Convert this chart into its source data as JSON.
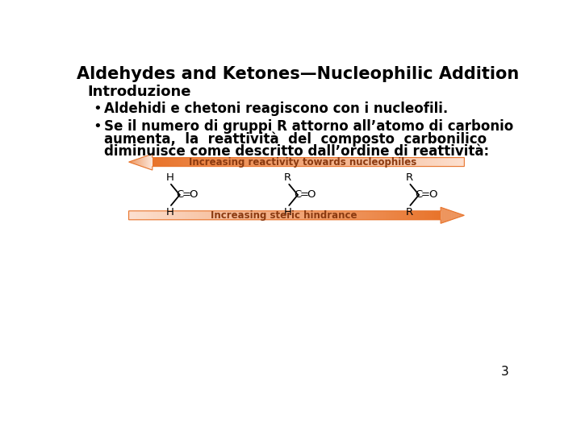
{
  "title": "Aldehydes and Ketones—Nucleophilic Addition",
  "subtitle": "Introduzione",
  "bullet1": "Aldehidi e chetoni reagiscono con i nucleofili.",
  "bullet2_line1": "Se il numero di gruppi R attorno all’atomo di carbonio",
  "bullet2_line2": "aumenta,  la  reattività  del  composto  carbonilico",
  "bullet2_line3": "diminuisce come descritto dall’ordine di reattività:",
  "arrow1_label": "Increasing reactivity towards nucleophiles",
  "arrow2_label": "Increasing steric hindrance",
  "bg_color": "#ffffff",
  "text_color": "#000000",
  "arrow_color_light": "#fce0d0",
  "arrow_color_dark": "#e8732a",
  "arrow_text_color": "#8b3a10",
  "page_number": "3",
  "title_fontsize": 15,
  "subtitle_fontsize": 13,
  "bullet_fontsize": 12,
  "mol_fontsize": 10
}
